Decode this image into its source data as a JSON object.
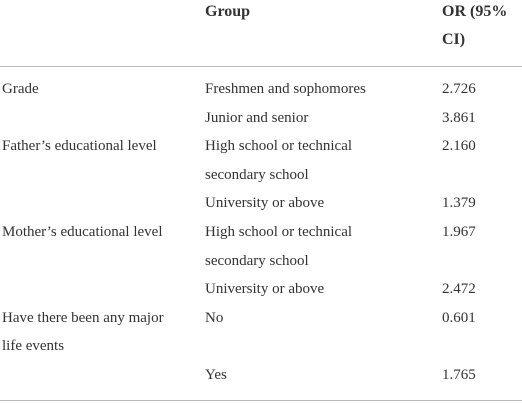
{
  "table": {
    "header": [
      null,
      "Group",
      "OR (95% CI)"
    ],
    "rows": [
      [
        "Grade",
        "Freshmen and sophomores",
        "2.726"
      ],
      [
        null,
        "Junior and senior",
        "3.861"
      ],
      [
        "Father’s educational level",
        "High school or technical secondary school",
        "2.160"
      ],
      [
        null,
        "University or above",
        "1.379"
      ],
      [
        "Mother’s educational level",
        "High school or technical secondary school",
        "1.967"
      ],
      [
        null,
        "University or above",
        "2.472"
      ],
      [
        "Have there been any major life events",
        "No",
        "0.601"
      ],
      [
        null,
        "Yes",
        "1.765"
      ]
    ]
  }
}
